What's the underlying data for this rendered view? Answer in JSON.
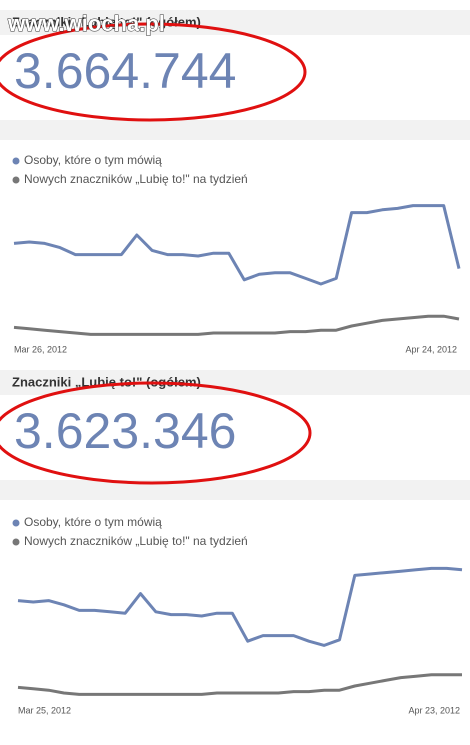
{
  "watermark": "www.wiocha.pl",
  "panels": [
    {
      "heading": "Znaczniki „Lubię to!\" (ogółem)",
      "count": "3.664.744"
    },
    {
      "heading": "Znaczniki „Lubię to!\" (ogółem)",
      "count": "3.623.346"
    }
  ],
  "chart_data": [
    {
      "type": "line",
      "categories": [
        "Mar 26, 2012",
        null,
        null,
        null,
        null,
        null,
        null,
        null,
        null,
        null,
        null,
        null,
        null,
        null,
        null,
        null,
        null,
        null,
        null,
        null,
        null,
        null,
        null,
        null,
        null,
        null,
        null,
        null,
        null,
        "Apr 24, 2012"
      ],
      "ylim": [
        0,
        100
      ],
      "series": [
        {
          "name": "Osoby, które o tym mówią",
          "color": "#6d84b4",
          "values": [
            69,
            70,
            69,
            66,
            61,
            61,
            61,
            61,
            75,
            64,
            61,
            61,
            60,
            62,
            62,
            43,
            47,
            48,
            48,
            44,
            40,
            44,
            91,
            91,
            93,
            94,
            96,
            96,
            96,
            51
          ]
        },
        {
          "name": "Nowych znaczników „Lubię to!\" na tydzień",
          "color": "#777777",
          "values": [
            9,
            8,
            7,
            6,
            5,
            4,
            4,
            4,
            4,
            4,
            4,
            4,
            4,
            5,
            5,
            5,
            5,
            5,
            6,
            6,
            7,
            7,
            10,
            12,
            14,
            15,
            16,
            17,
            17,
            15
          ]
        }
      ]
    },
    {
      "type": "line",
      "categories": [
        "Mar 25, 2012",
        null,
        null,
        null,
        null,
        null,
        null,
        null,
        null,
        null,
        null,
        null,
        null,
        null,
        null,
        null,
        null,
        null,
        null,
        null,
        null,
        null,
        null,
        null,
        null,
        null,
        null,
        null,
        null,
        "Apr 23, 2012"
      ],
      "ylim": [
        0,
        100
      ],
      "series": [
        {
          "name": "Osoby, które o tym mówią",
          "color": "#6d84b4",
          "values": [
            71,
            70,
            71,
            68,
            64,
            64,
            63,
            62,
            76,
            63,
            61,
            61,
            60,
            62,
            62,
            42,
            46,
            46,
            46,
            42,
            39,
            43,
            89,
            90,
            91,
            92,
            93,
            94,
            94,
            93
          ]
        },
        {
          "name": "Nowych znaczników „Lubię to!\" na tydzień",
          "color": "#777777",
          "values": [
            9,
            8,
            7,
            5,
            4,
            4,
            4,
            4,
            4,
            4,
            4,
            4,
            4,
            5,
            5,
            5,
            5,
            5,
            6,
            6,
            7,
            7,
            10,
            12,
            14,
            16,
            17,
            18,
            18,
            18
          ]
        }
      ]
    }
  ]
}
